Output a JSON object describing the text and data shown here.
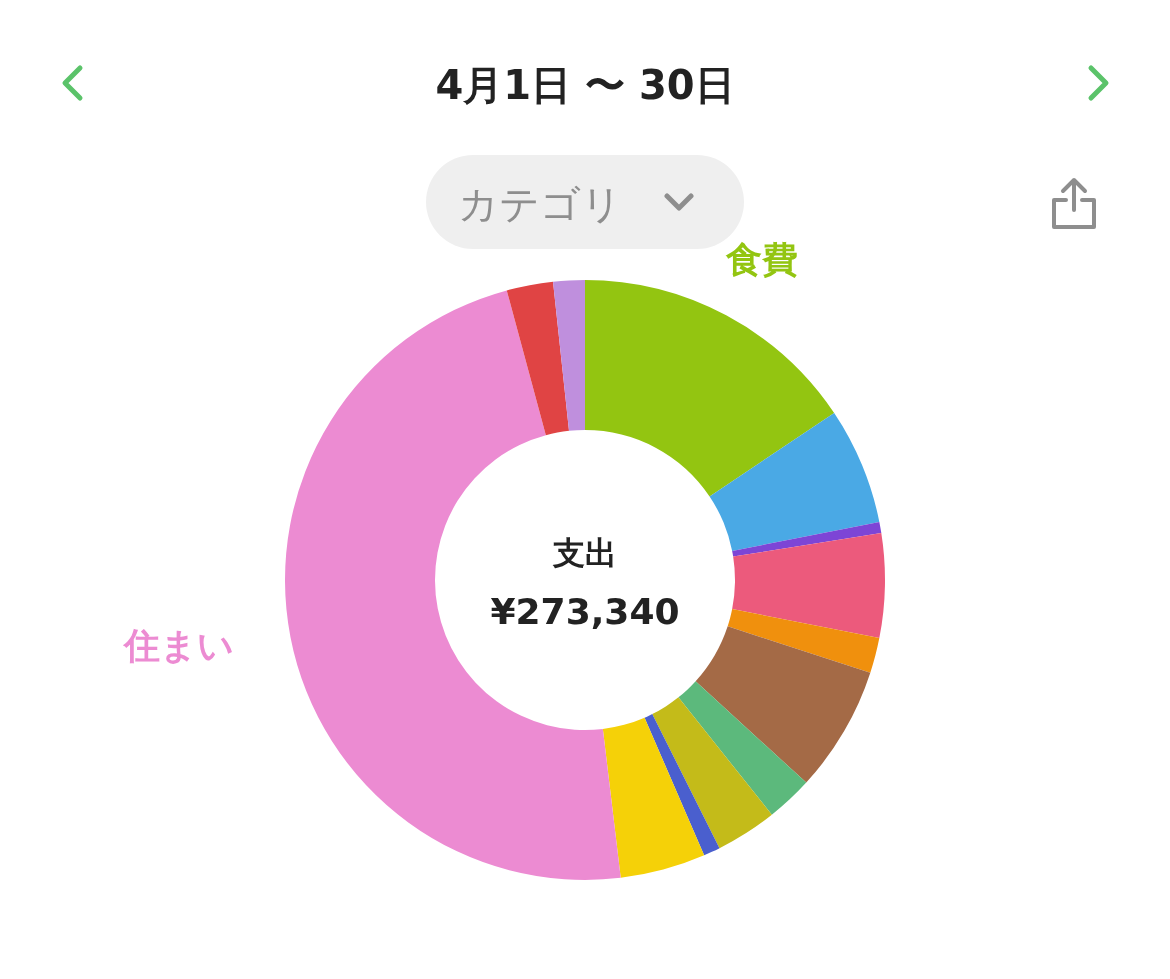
{
  "chart_data": {
    "type": "donut",
    "title": "4月1日 〜 30日",
    "categories": [
      "食費",
      null,
      null,
      null,
      null,
      null,
      null,
      null,
      null,
      null,
      "住まい",
      null,
      null
    ],
    "values": [
      15.6,
      6.3,
      0.6,
      5.6,
      1.9,
      6.8,
      2.5,
      3.3,
      0.9,
      4.6,
      47.7,
      2.5,
      1.7
    ],
    "colors": [
      "#93c511",
      "#4aa9e5",
      "#7d45d6",
      "#ec5a7c",
      "#f0900d",
      "#a46a46",
      "#5cb97c",
      "#c4bb19",
      "#4a5fce",
      "#f5d108",
      "#ec8bd2",
      "#e04444",
      "#bf8fdd"
    ],
    "annotations": [
      "支出",
      "¥273,340",
      "カテゴリ"
    ],
    "legend": false
  }
}
